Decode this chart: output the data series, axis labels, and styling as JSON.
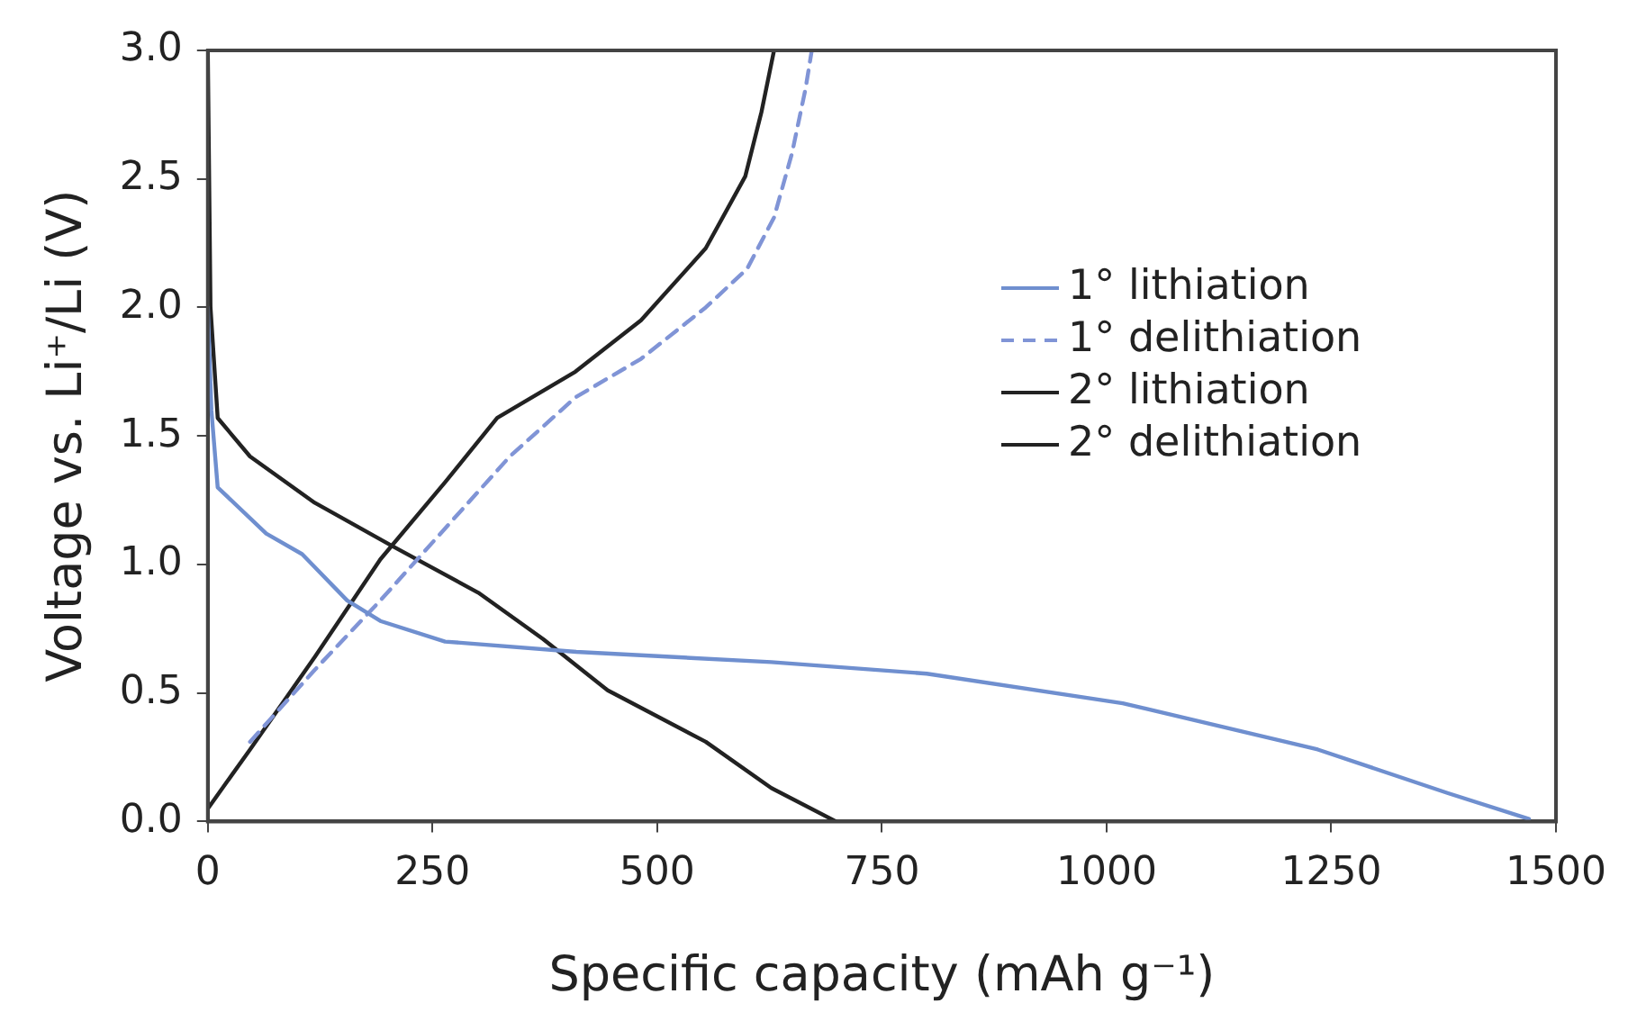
{
  "chart_data": {
    "type": "line",
    "xlabel": "Specific capacity (mAh g⁻¹)",
    "ylabel": "Voltage vs. Li⁺/Li (V)",
    "xlim": [
      0,
      1500
    ],
    "xticks": [
      0,
      250,
      500,
      750,
      1000,
      1250,
      1500
    ],
    "ylim": [
      0,
      3
    ],
    "yticks": [
      {
        "value": 0,
        "label": "0.0"
      },
      {
        "value": 0.5,
        "label": "0.5"
      },
      {
        "value": 1,
        "label": "1.0"
      },
      {
        "value": 1.5,
        "label": "1.5"
      },
      {
        "value": 2,
        "label": "2.0"
      },
      {
        "value": 2.5,
        "label": "2.5"
      },
      {
        "value": 3,
        "label": "3.0"
      }
    ],
    "grid": false,
    "legend": "right",
    "marker": "none",
    "series": [
      {
        "name": "1° lithiation",
        "color": "#6f8fcf",
        "line_style": "solid",
        "x": [
          0,
          4,
          11,
          65,
          105,
          155,
          192,
          264,
          410,
          627,
          800,
          1018,
          1235,
          1380,
          1470
        ],
        "values": [
          2.0,
          1.6,
          1.3,
          1.12,
          1.04,
          0.86,
          0.78,
          0.7,
          0.66,
          0.62,
          0.575,
          0.46,
          0.28,
          0.11,
          0.01
        ]
      },
      {
        "name": "1° delithiation",
        "color": "#8094d6",
        "line_style": "dashed",
        "x": [
          47,
          119,
          192,
          264,
          336,
          409,
          482,
          554,
          600,
          630,
          650,
          665,
          672
        ],
        "values": [
          0.31,
          0.59,
          0.86,
          1.14,
          1.42,
          1.65,
          1.8,
          2.0,
          2.15,
          2.35,
          2.6,
          2.85,
          3.0
        ]
      },
      {
        "name": "2° lithiation",
        "color": "#222222",
        "line_style": "solid",
        "x": [
          0,
          3,
          11,
          47,
          119,
          206,
          301,
          373,
          445,
          554,
          627,
          699
        ],
        "values": [
          3.0,
          2.0,
          1.57,
          1.42,
          1.24,
          1.07,
          0.89,
          0.71,
          0.51,
          0.31,
          0.13,
          0.0
        ]
      },
      {
        "name": "2° delithiation",
        "color": "#222222",
        "line_style": "solid",
        "x": [
          0,
          47,
          119,
          192,
          264,
          322,
          409,
          482,
          554,
          598,
          616,
          630
        ],
        "values": [
          0.05,
          0.28,
          0.64,
          1.02,
          1.32,
          1.57,
          1.75,
          1.95,
          2.23,
          2.51,
          2.76,
          3.0
        ]
      }
    ]
  }
}
